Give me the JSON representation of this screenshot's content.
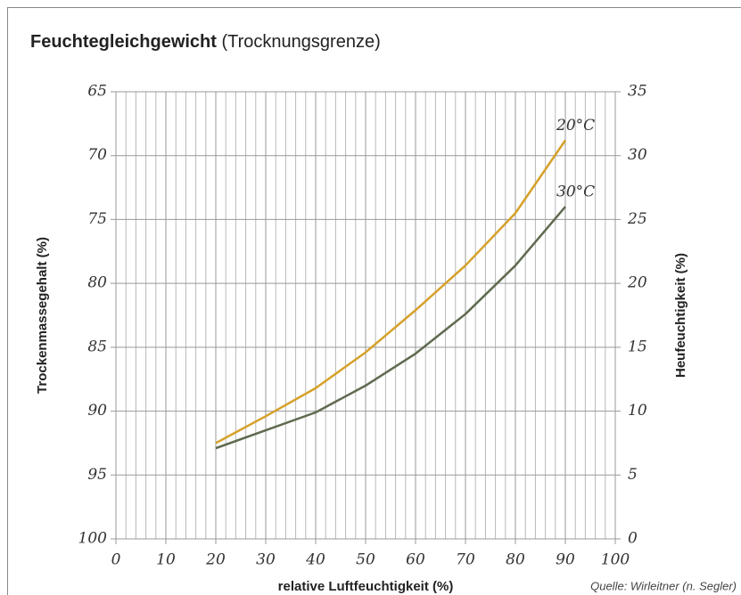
{
  "chart_data": {
    "type": "line",
    "title": "Feuchtegleichgewicht",
    "subtitle": "(Trocknungsgrenze)",
    "x_label": "relative Luftfeuchtigkeit (%)",
    "y_label": "Trockenmassegehalt (%)",
    "y2_label": "Heufeuchtigkeit (%)",
    "source": "Quelle: Wirleitner (n. Segler)",
    "x": [
      20,
      30,
      40,
      50,
      60,
      70,
      80,
      90
    ],
    "xlim": [
      0,
      100
    ],
    "xticks": [
      0,
      10,
      20,
      30,
      40,
      50,
      60,
      70,
      80,
      90,
      100
    ],
    "ylim": [
      100,
      65
    ],
    "yticks": [
      65,
      70,
      75,
      80,
      85,
      90,
      95,
      100
    ],
    "y2lim": [
      0,
      35
    ],
    "y2ticks": [
      0,
      5,
      10,
      15,
      20,
      25,
      30,
      35
    ],
    "grid": true,
    "minor_grid_step": 2,
    "series": [
      {
        "name": "20°C",
        "color": "#d6a12a",
        "axis": "y2",
        "values": [
          7.5,
          9.6,
          11.8,
          14.6,
          17.9,
          21.4,
          25.5,
          31.2
        ]
      },
      {
        "name": "30°C",
        "color": "#5f6a4f",
        "axis": "y2",
        "values": [
          7.1,
          8.5,
          9.9,
          12.0,
          14.5,
          17.6,
          21.4,
          26.0
        ]
      }
    ]
  }
}
